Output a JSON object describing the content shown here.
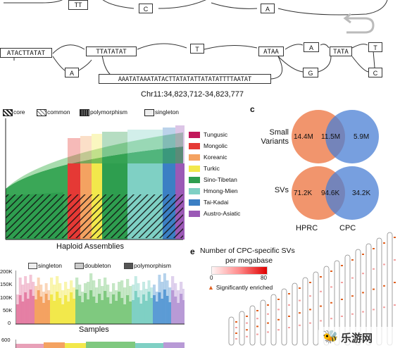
{
  "graph": {
    "top_nodes": [
      "TT",
      "C",
      "A"
    ],
    "seq_nodes": [
      "ATACTTATAT",
      "TTATATAT",
      "T",
      "ATAA",
      "A",
      "TATA",
      "T"
    ],
    "lower_nodes": [
      "A",
      "G",
      "C"
    ],
    "long_seq": "AAATATAAATATACTTATATATTATATATTTTAATAT",
    "coordinate": "Chr11:34,823,712-34,823,777"
  },
  "panel_b": {
    "legend": [
      "core",
      "common",
      "polymorphism",
      "singleton"
    ],
    "xlabel": "Haploid Assemblies",
    "groups": [
      {
        "name": "Tungusic",
        "color": "#c2185b"
      },
      {
        "name": "Mongolic",
        "color": "#e53935"
      },
      {
        "name": "Koreanic",
        "color": "#f4a261"
      },
      {
        "name": "Turkic",
        "color": "#f2e84b"
      },
      {
        "name": "Sino-Tibetan",
        "color": "#2e9e4f"
      },
      {
        "name": "Hmong-Mien",
        "color": "#7fd0c4"
      },
      {
        "name": "Tai-Kadai",
        "color": "#3b7fc4"
      },
      {
        "name": "Austro-Asiatic",
        "color": "#9b59b6"
      }
    ]
  },
  "panel_c": {
    "label": "c",
    "rows": [
      {
        "label": "Small Variants",
        "left": "14.4M",
        "mid": "11.5M",
        "right": "5.9M"
      },
      {
        "label": "SVs",
        "left": "71.2K",
        "mid": "94.6K",
        "right": "34.2K"
      }
    ],
    "set_left": "HPRC",
    "set_right": "CPC",
    "left_color": "#f08a5d",
    "right_color": "#4a7fd4"
  },
  "panel_d": {
    "legend": [
      "singleton",
      "doubleton",
      "polymorphism"
    ],
    "yticks": [
      "200K",
      "150K",
      "100K",
      "50K",
      "0"
    ],
    "xlabel": "Samples",
    "ytick_bottom": "600"
  },
  "panel_e": {
    "label": "e",
    "title_line1": "Number of CPC-specific SVs",
    "title_line2": "per megabase",
    "scale_min": "0",
    "scale_max": "80",
    "enriched_label": "Significantly enriched"
  },
  "watermark": {
    "text": "乐游网"
  }
}
